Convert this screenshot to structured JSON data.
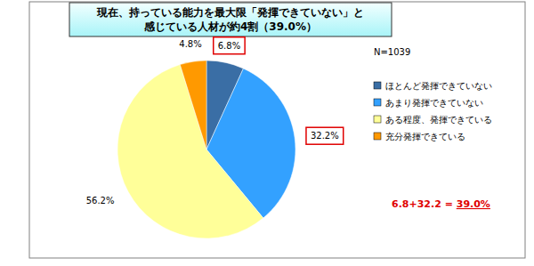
{
  "chart_data": {
    "type": "pie",
    "title": "現在、持っている能力を最大限「発揮できていない」と\n感じている人材が約4割（39.0%）",
    "categories": [
      "ほとんど発揮できていない",
      "あまり発揮できていない",
      "ある程度、発揮できている",
      "充分発揮できている"
    ],
    "values": [
      6.8,
      32.2,
      56.2,
      4.8
    ],
    "value_labels": [
      "6.8%",
      "32.2%",
      "56.2%",
      "4.8%"
    ],
    "colors": [
      "#3A6EA5",
      "#33A1FF",
      "#FFFF99",
      "#FF9900"
    ],
    "data_labels": true,
    "legend": "right",
    "annotations": [
      {
        "text": "N=1039"
      },
      {
        "text": "6.8+32.2 = ",
        "emphasis": "39.0%"
      }
    ]
  }
}
